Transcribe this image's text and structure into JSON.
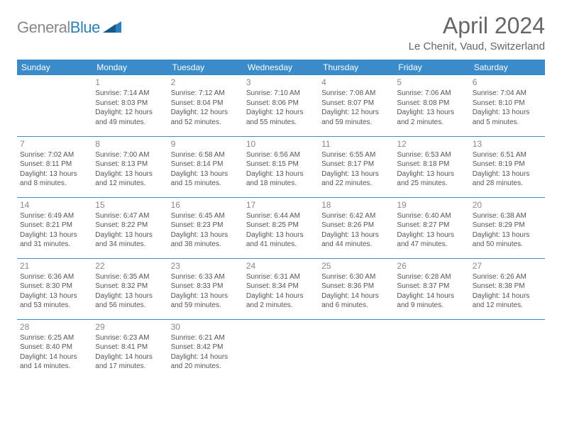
{
  "logo": {
    "part1": "General",
    "part2": "Blue"
  },
  "title": "April 2024",
  "location": "Le Chenit, Vaud, Switzerland",
  "header_color": "#3a8bc9",
  "weekdays": [
    "Sunday",
    "Monday",
    "Tuesday",
    "Wednesday",
    "Thursday",
    "Friday",
    "Saturday"
  ],
  "weeks": [
    [
      null,
      {
        "n": "1",
        "sr": "Sunrise: 7:14 AM",
        "ss": "Sunset: 8:03 PM",
        "d1": "Daylight: 12 hours",
        "d2": "and 49 minutes."
      },
      {
        "n": "2",
        "sr": "Sunrise: 7:12 AM",
        "ss": "Sunset: 8:04 PM",
        "d1": "Daylight: 12 hours",
        "d2": "and 52 minutes."
      },
      {
        "n": "3",
        "sr": "Sunrise: 7:10 AM",
        "ss": "Sunset: 8:06 PM",
        "d1": "Daylight: 12 hours",
        "d2": "and 55 minutes."
      },
      {
        "n": "4",
        "sr": "Sunrise: 7:08 AM",
        "ss": "Sunset: 8:07 PM",
        "d1": "Daylight: 12 hours",
        "d2": "and 59 minutes."
      },
      {
        "n": "5",
        "sr": "Sunrise: 7:06 AM",
        "ss": "Sunset: 8:08 PM",
        "d1": "Daylight: 13 hours",
        "d2": "and 2 minutes."
      },
      {
        "n": "6",
        "sr": "Sunrise: 7:04 AM",
        "ss": "Sunset: 8:10 PM",
        "d1": "Daylight: 13 hours",
        "d2": "and 5 minutes."
      }
    ],
    [
      {
        "n": "7",
        "sr": "Sunrise: 7:02 AM",
        "ss": "Sunset: 8:11 PM",
        "d1": "Daylight: 13 hours",
        "d2": "and 8 minutes."
      },
      {
        "n": "8",
        "sr": "Sunrise: 7:00 AM",
        "ss": "Sunset: 8:13 PM",
        "d1": "Daylight: 13 hours",
        "d2": "and 12 minutes."
      },
      {
        "n": "9",
        "sr": "Sunrise: 6:58 AM",
        "ss": "Sunset: 8:14 PM",
        "d1": "Daylight: 13 hours",
        "d2": "and 15 minutes."
      },
      {
        "n": "10",
        "sr": "Sunrise: 6:56 AM",
        "ss": "Sunset: 8:15 PM",
        "d1": "Daylight: 13 hours",
        "d2": "and 18 minutes."
      },
      {
        "n": "11",
        "sr": "Sunrise: 6:55 AM",
        "ss": "Sunset: 8:17 PM",
        "d1": "Daylight: 13 hours",
        "d2": "and 22 minutes."
      },
      {
        "n": "12",
        "sr": "Sunrise: 6:53 AM",
        "ss": "Sunset: 8:18 PM",
        "d1": "Daylight: 13 hours",
        "d2": "and 25 minutes."
      },
      {
        "n": "13",
        "sr": "Sunrise: 6:51 AM",
        "ss": "Sunset: 8:19 PM",
        "d1": "Daylight: 13 hours",
        "d2": "and 28 minutes."
      }
    ],
    [
      {
        "n": "14",
        "sr": "Sunrise: 6:49 AM",
        "ss": "Sunset: 8:21 PM",
        "d1": "Daylight: 13 hours",
        "d2": "and 31 minutes."
      },
      {
        "n": "15",
        "sr": "Sunrise: 6:47 AM",
        "ss": "Sunset: 8:22 PM",
        "d1": "Daylight: 13 hours",
        "d2": "and 34 minutes."
      },
      {
        "n": "16",
        "sr": "Sunrise: 6:45 AM",
        "ss": "Sunset: 8:23 PM",
        "d1": "Daylight: 13 hours",
        "d2": "and 38 minutes."
      },
      {
        "n": "17",
        "sr": "Sunrise: 6:44 AM",
        "ss": "Sunset: 8:25 PM",
        "d1": "Daylight: 13 hours",
        "d2": "and 41 minutes."
      },
      {
        "n": "18",
        "sr": "Sunrise: 6:42 AM",
        "ss": "Sunset: 8:26 PM",
        "d1": "Daylight: 13 hours",
        "d2": "and 44 minutes."
      },
      {
        "n": "19",
        "sr": "Sunrise: 6:40 AM",
        "ss": "Sunset: 8:27 PM",
        "d1": "Daylight: 13 hours",
        "d2": "and 47 minutes."
      },
      {
        "n": "20",
        "sr": "Sunrise: 6:38 AM",
        "ss": "Sunset: 8:29 PM",
        "d1": "Daylight: 13 hours",
        "d2": "and 50 minutes."
      }
    ],
    [
      {
        "n": "21",
        "sr": "Sunrise: 6:36 AM",
        "ss": "Sunset: 8:30 PM",
        "d1": "Daylight: 13 hours",
        "d2": "and 53 minutes."
      },
      {
        "n": "22",
        "sr": "Sunrise: 6:35 AM",
        "ss": "Sunset: 8:32 PM",
        "d1": "Daylight: 13 hours",
        "d2": "and 56 minutes."
      },
      {
        "n": "23",
        "sr": "Sunrise: 6:33 AM",
        "ss": "Sunset: 8:33 PM",
        "d1": "Daylight: 13 hours",
        "d2": "and 59 minutes."
      },
      {
        "n": "24",
        "sr": "Sunrise: 6:31 AM",
        "ss": "Sunset: 8:34 PM",
        "d1": "Daylight: 14 hours",
        "d2": "and 2 minutes."
      },
      {
        "n": "25",
        "sr": "Sunrise: 6:30 AM",
        "ss": "Sunset: 8:36 PM",
        "d1": "Daylight: 14 hours",
        "d2": "and 6 minutes."
      },
      {
        "n": "26",
        "sr": "Sunrise: 6:28 AM",
        "ss": "Sunset: 8:37 PM",
        "d1": "Daylight: 14 hours",
        "d2": "and 9 minutes."
      },
      {
        "n": "27",
        "sr": "Sunrise: 6:26 AM",
        "ss": "Sunset: 8:38 PM",
        "d1": "Daylight: 14 hours",
        "d2": "and 12 minutes."
      }
    ],
    [
      {
        "n": "28",
        "sr": "Sunrise: 6:25 AM",
        "ss": "Sunset: 8:40 PM",
        "d1": "Daylight: 14 hours",
        "d2": "and 14 minutes."
      },
      {
        "n": "29",
        "sr": "Sunrise: 6:23 AM",
        "ss": "Sunset: 8:41 PM",
        "d1": "Daylight: 14 hours",
        "d2": "and 17 minutes."
      },
      {
        "n": "30",
        "sr": "Sunrise: 6:21 AM",
        "ss": "Sunset: 8:42 PM",
        "d1": "Daylight: 14 hours",
        "d2": "and 20 minutes."
      },
      null,
      null,
      null,
      null
    ]
  ]
}
